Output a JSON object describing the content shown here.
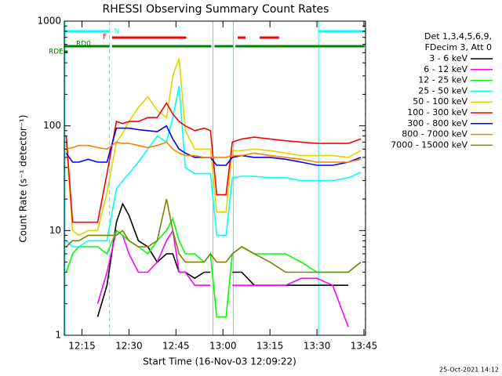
{
  "chart_data": {
    "type": "line",
    "title": "RHESSI Observing Summary Count Rates",
    "xlabel": "Start Time (16-Nov-03 12:09:22)",
    "ylabel": "Count Rate (s⁻¹ detector⁻¹)",
    "footer": "25-Oct-2021 14:12",
    "legend_header": [
      "Det 1,3,4,5,6,9,",
      "FDecim 3, Att 0"
    ],
    "legend": "right",
    "ylog": true,
    "xlim": [
      9.37,
      105.5
    ],
    "ylim": [
      1,
      1000
    ],
    "xticks": [
      {
        "value": 15,
        "label": "12:15"
      },
      {
        "value": 30,
        "label": "12:30"
      },
      {
        "value": 45,
        "label": "12:45"
      },
      {
        "value": 60,
        "label": "13:00"
      },
      {
        "value": 75,
        "label": "13:15"
      },
      {
        "value": 90,
        "label": "13:30"
      },
      {
        "value": 105,
        "label": "13:45"
      }
    ],
    "yticks": [
      1,
      10,
      100,
      1000
    ],
    "x": [
      10,
      12,
      14,
      17,
      20,
      23,
      26,
      28,
      30,
      33,
      36,
      39,
      42,
      44,
      46,
      48,
      51,
      54,
      56,
      58,
      61,
      63,
      66,
      70,
      75,
      80,
      85,
      90,
      95,
      100,
      104
    ],
    "series": [
      {
        "name": "3 - 6 keV",
        "color": "#000000",
        "values": [
          null,
          null,
          null,
          null,
          1.5,
          3,
          12,
          18,
          14,
          8,
          7,
          5,
          6,
          6,
          4,
          4,
          3.5,
          4,
          4,
          null,
          null,
          4,
          4,
          3,
          3,
          3,
          3,
          3,
          3,
          3,
          null
        ]
      },
      {
        "name": "6 - 12 keV",
        "color": "#ff00ff",
        "values": [
          null,
          null,
          null,
          null,
          2,
          4,
          10,
          9,
          6,
          4,
          4,
          5,
          8,
          10,
          4,
          4,
          3,
          3,
          3,
          null,
          null,
          3,
          3,
          3,
          3,
          3,
          3.5,
          3.5,
          3,
          1.2,
          null
        ]
      },
      {
        "name": "12 - 25 keV",
        "color": "#00ff00",
        "values": [
          4,
          6,
          7,
          7,
          7,
          6,
          10,
          9,
          8,
          7,
          6,
          8,
          10,
          13,
          8,
          6,
          6,
          5,
          6,
          1.5,
          1.5,
          6,
          7,
          6,
          6,
          6,
          5,
          4,
          4,
          4,
          5
        ]
      },
      {
        "name": "25 - 50 keV",
        "color": "#00ffff",
        "values": [
          8,
          7,
          7,
          8,
          8,
          8,
          25,
          30,
          35,
          45,
          60,
          80,
          70,
          120,
          240,
          40,
          35,
          35,
          35,
          9,
          9,
          32,
          33,
          33,
          32,
          32,
          30,
          30,
          30,
          32,
          36
        ]
      },
      {
        "name": "50 - 100 keV",
        "color": "#d8d800",
        "values": [
          70,
          10,
          9,
          10,
          10,
          23,
          70,
          85,
          110,
          150,
          190,
          140,
          120,
          300,
          440,
          90,
          60,
          60,
          60,
          15,
          15,
          58,
          58,
          60,
          58,
          55,
          52,
          52,
          52,
          50,
          58
        ]
      },
      {
        "name": "100 - 300 keV",
        "color": "#ff0000",
        "values": [
          80,
          12,
          12,
          12,
          12,
          35,
          110,
          105,
          110,
          110,
          120,
          120,
          165,
          130,
          110,
          100,
          90,
          95,
          90,
          22,
          22,
          70,
          75,
          78,
          75,
          72,
          70,
          68,
          68,
          68,
          75
        ]
      },
      {
        "name": "300 - 800 keV",
        "color": "#0000ff",
        "values": [
          55,
          45,
          45,
          48,
          45,
          45,
          95,
          95,
          95,
          92,
          90,
          88,
          100,
          75,
          60,
          55,
          50,
          50,
          50,
          42,
          42,
          50,
          52,
          50,
          50,
          48,
          45,
          42,
          42,
          45,
          50
        ]
      },
      {
        "name": "800 - 7000 keV",
        "color": "#ff8000",
        "values": [
          60,
          62,
          65,
          65,
          62,
          60,
          70,
          68,
          68,
          65,
          62,
          65,
          70,
          60,
          55,
          52,
          52,
          50,
          50,
          50,
          50,
          52,
          52,
          55,
          52,
          50,
          48,
          45,
          45,
          45,
          48
        ]
      },
      {
        "name": "7000 - 15000 keV",
        "color": "#808000",
        "values": [
          7,
          8,
          8,
          9,
          9,
          9,
          9,
          10,
          8,
          7,
          7,
          8,
          20,
          10,
          6,
          5,
          5,
          5,
          6,
          5,
          5,
          6,
          7,
          6,
          5,
          4,
          4,
          4,
          4,
          4,
          5
        ]
      }
    ],
    "flags": [
      {
        "label": "N",
        "color": "#00ffff",
        "intervals": [
          [
            9.37,
            23.8
          ],
          [
            90.5,
            105.5
          ]
        ]
      },
      {
        "label": "F",
        "color": "#ff0000",
        "intervals": [
          [
            24.6,
            48.3
          ],
          [
            64.7,
            67.2
          ],
          [
            71.7,
            77.9
          ]
        ]
      },
      {
        "label": "RD0",
        "color": "#008000",
        "intervals": [
          [
            9.37,
            23.8
          ],
          [
            24.6,
            56.3
          ],
          [
            57.3,
            63.2
          ],
          [
            64.0,
            105.2
          ]
        ]
      },
      {
        "label": "RDE",
        "color": "#008000",
        "intervals": [
          [
            9.37,
            10.5
          ]
        ]
      }
    ],
    "vlines": [
      {
        "x": 9.6,
        "color": "#00ffff",
        "dashed": false
      },
      {
        "x": 23.8,
        "color": "#00ffff",
        "dashed": true
      },
      {
        "x": 56.8,
        "color": "#00ffff",
        "dashed": false
      },
      {
        "x": 63.3,
        "color": "#00ffff",
        "dashed": false
      },
      {
        "x": 90.5,
        "color": "#00ffff",
        "dashed": false
      },
      {
        "x": 105.4,
        "color": "#00ffff",
        "dashed": true
      }
    ]
  }
}
